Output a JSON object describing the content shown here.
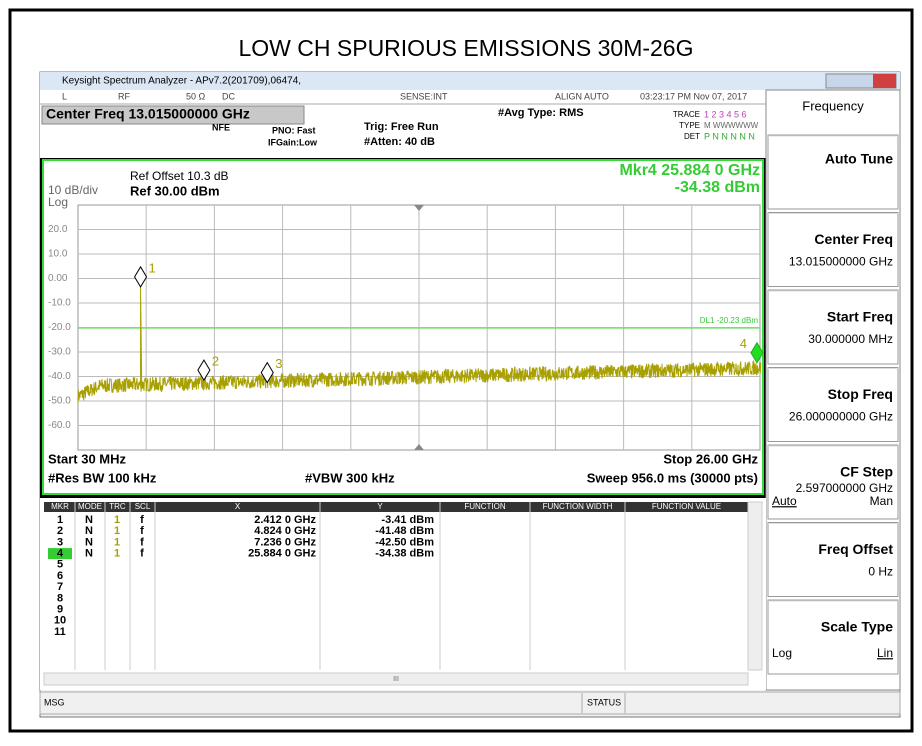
{
  "title": "LOW CH SPURIOUS EMISSIONS 30M-26G",
  "window_title": "Keysight Spectrum Analyzer - APv7.2(201709),06474,",
  "status_bar": {
    "items": [
      "L",
      "RF",
      "50 Ω",
      "DC",
      "SENSE:INT",
      "ALIGN AUTO",
      "03:23:17 PM Nov 07, 2017"
    ]
  },
  "settings": {
    "center_freq": "Center Freq 13.015000000 GHz",
    "nfe": "NFE",
    "pno": "PNO: Fast",
    "ifgain": "IFGain:Low",
    "trig": "Trig: Free Run",
    "atten": "#Atten: 40 dB",
    "avg_type": "#Avg Type: RMS",
    "trace_label": "TRACE",
    "trace_nums": "1 2 3 4 5 6",
    "type_label": "TYPE",
    "type_val": "M WWWWWW",
    "det_label": "DET",
    "det_val": "P N N N N N"
  },
  "plot": {
    "ref_offset": "Ref Offset 10.3 dB",
    "scale": "10 dB/div",
    "ref": "Ref 30.00 dBm",
    "scale_type": "Log",
    "marker_readout": [
      "Mkr4 25.884 0 GHz",
      "-34.38 dBm"
    ],
    "display_line": {
      "label": "DL1 -20.23 dBm",
      "value": -20.23
    },
    "xlim": [
      0.03,
      26
    ],
    "ylim": [
      -70,
      30
    ],
    "yticks": [
      {
        "value": 20,
        "label": "20.0"
      },
      {
        "value": 10,
        "label": "10.0"
      },
      {
        "value": 0,
        "label": "0.00"
      },
      {
        "value": -10,
        "label": "-10.0"
      },
      {
        "value": -20,
        "label": "-20.0"
      },
      {
        "value": -30,
        "label": "-30.0"
      },
      {
        "value": -40,
        "label": "-40.0"
      },
      {
        "value": -50,
        "label": "-50.0"
      },
      {
        "value": -60,
        "label": "-60.0"
      }
    ],
    "markers": [
      {
        "label": "1",
        "x": 2.412,
        "y": -3.41
      },
      {
        "label": "2",
        "x": 4.824,
        "y": -41.48
      },
      {
        "label": "3",
        "x": 7.236,
        "y": -42.5
      },
      {
        "label": "4",
        "x": 25.884,
        "y": -34.38
      }
    ],
    "start": "Start 30 MHz",
    "stop": "Stop 26.00 GHz",
    "rbw": "#Res BW 100 kHz",
    "vbw": "#VBW 300 kHz",
    "sweep": "Sweep  956.0 ms (30000 pts)"
  },
  "marker_table": {
    "headers": [
      "MKR",
      "MODE",
      "TRC",
      "SCL",
      "X",
      "Y",
      "FUNCTION",
      "FUNCTION WIDTH",
      "FUNCTION VALUE"
    ],
    "rows": [
      [
        "1",
        "N",
        "1",
        "f",
        "2.412 0 GHz",
        "-3.41 dBm"
      ],
      [
        "2",
        "N",
        "1",
        "f",
        "4.824 0 GHz",
        "-41.48 dBm"
      ],
      [
        "3",
        "N",
        "1",
        "f",
        "7.236 0 GHz",
        "-42.50 dBm"
      ],
      [
        "4",
        "N",
        "1",
        "f",
        "25.884 0 GHz",
        "-34.38 dBm"
      ],
      [
        "5"
      ],
      [
        "6"
      ],
      [
        "7"
      ],
      [
        "8"
      ],
      [
        "9"
      ],
      [
        "10"
      ],
      [
        "11"
      ]
    ],
    "scroll_mark": "III"
  },
  "softkeys": {
    "title": "Frequency",
    "keys": [
      {
        "label": "Auto Tune"
      },
      {
        "label": "Center Freq",
        "value": "13.015000000 GHz"
      },
      {
        "label": "Start Freq",
        "value": "30.000000 MHz"
      },
      {
        "label": "Stop Freq",
        "value": "26.000000000 GHz"
      },
      {
        "label": "CF Step",
        "value": "2.597000000 GHz",
        "options": [
          "Auto",
          "Man"
        ]
      },
      {
        "label": "Freq Offset",
        "value": "0 Hz"
      },
      {
        "label": "Scale Type",
        "options": [
          "Log",
          "Lin"
        ]
      }
    ]
  },
  "bottom_bar": [
    "MSG",
    "STATUS"
  ]
}
